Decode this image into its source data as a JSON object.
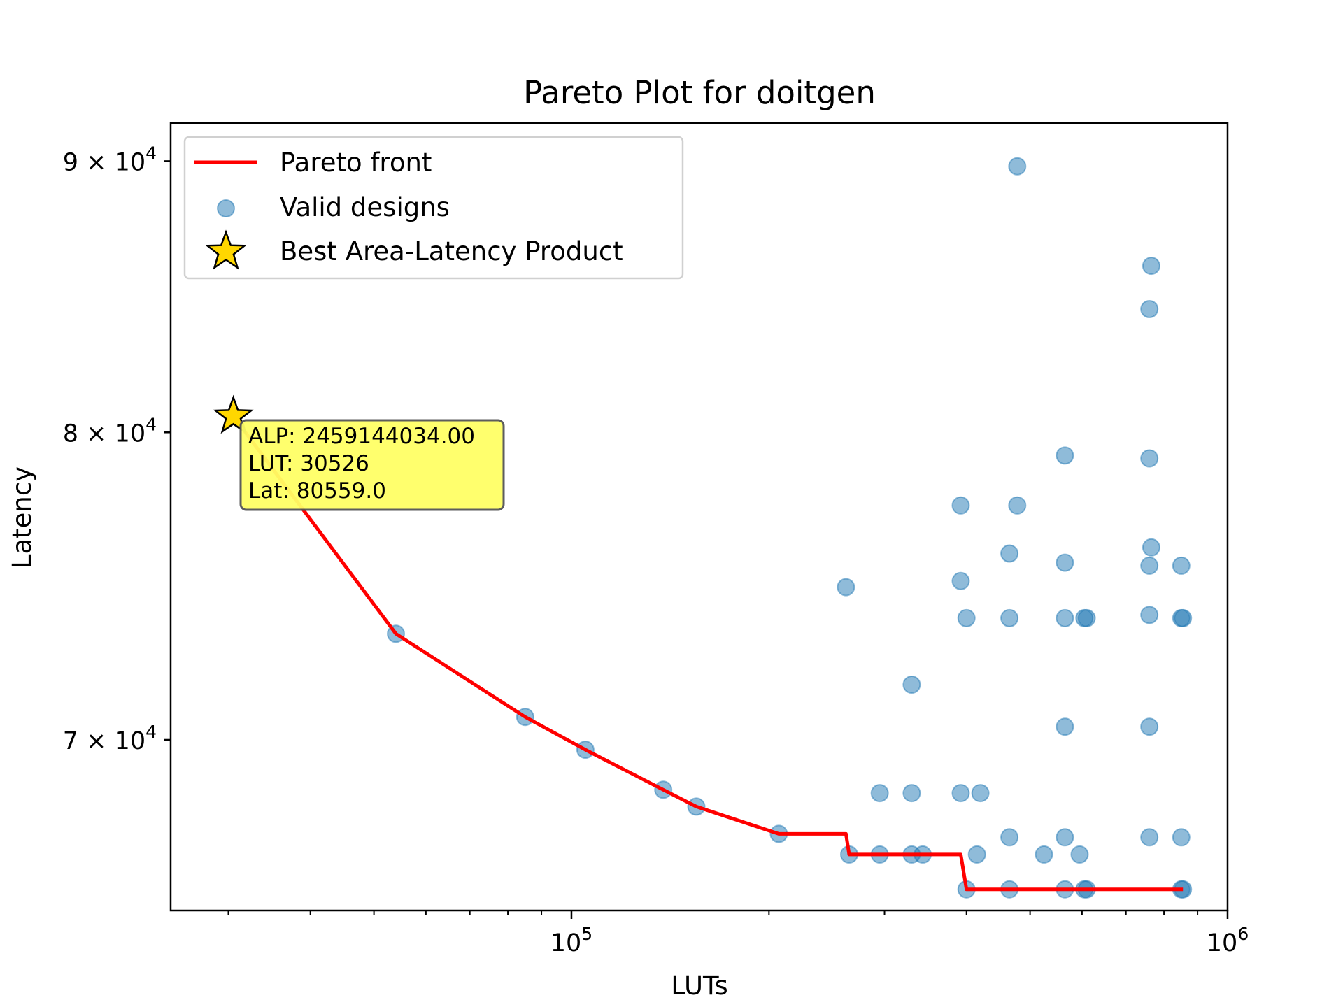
{
  "chart_data": {
    "type": "scatter",
    "title": "Pareto Plot for doitgen",
    "xlabel": "LUTs",
    "ylabel": "Latency",
    "xscale": "log",
    "yscale": "log",
    "xlim": [
      24500,
      1000000
    ],
    "ylim": [
      65000,
      91500
    ],
    "x_ticks": [
      {
        "value": 100000,
        "base": "10",
        "exp": "5"
      },
      {
        "value": 1000000,
        "base": "10",
        "exp": "6"
      }
    ],
    "y_ticks": [
      {
        "value": 70000,
        "mant": "7",
        "base": "10",
        "exp": "4"
      },
      {
        "value": 80000,
        "mant": "8",
        "base": "10",
        "exp": "4"
      },
      {
        "value": 90000,
        "mant": "9",
        "base": "10",
        "exp": "4"
      }
    ],
    "grid": false,
    "legend_position": "top-left",
    "legend": [
      {
        "label": "Pareto front",
        "kind": "line"
      },
      {
        "label": "Valid designs",
        "kind": "marker"
      },
      {
        "label": "Best Area-Latency Product",
        "kind": "star"
      }
    ],
    "colors": {
      "pareto": "#ff0000",
      "points": "#1f77b4",
      "star": "#ffd700",
      "annotation_bg": "#ffff66"
    },
    "valid_designs": [
      [
        54000,
        73300
      ],
      [
        85000,
        70700
      ],
      [
        105000,
        69700
      ],
      [
        138000,
        68500
      ],
      [
        155000,
        68000
      ],
      [
        207000,
        67200
      ],
      [
        262000,
        74800
      ],
      [
        265000,
        66600
      ],
      [
        295000,
        66600
      ],
      [
        295000,
        68400
      ],
      [
        330000,
        71700
      ],
      [
        330000,
        68400
      ],
      [
        330000,
        66600
      ],
      [
        343000,
        66600
      ],
      [
        392000,
        77500
      ],
      [
        392000,
        75000
      ],
      [
        392000,
        68400
      ],
      [
        400000,
        73800
      ],
      [
        400000,
        65600
      ],
      [
        420000,
        68400
      ],
      [
        415000,
        66600
      ],
      [
        465000,
        75900
      ],
      [
        465000,
        73800
      ],
      [
        465000,
        67100
      ],
      [
        465000,
        65600
      ],
      [
        478000,
        77500
      ],
      [
        478000,
        89800
      ],
      [
        525000,
        66600
      ],
      [
        565000,
        79200
      ],
      [
        565000,
        75600
      ],
      [
        565000,
        73800
      ],
      [
        565000,
        70400
      ],
      [
        565000,
        67100
      ],
      [
        565000,
        65600
      ],
      [
        595000,
        66600
      ],
      [
        605000,
        73800
      ],
      [
        610000,
        73800
      ],
      [
        605000,
        65600
      ],
      [
        610000,
        65600
      ],
      [
        760000,
        84400
      ],
      [
        765000,
        86000
      ],
      [
        760000,
        79100
      ],
      [
        765000,
        76100
      ],
      [
        760000,
        75500
      ],
      [
        760000,
        73900
      ],
      [
        760000,
        70400
      ],
      [
        760000,
        67100
      ],
      [
        850000,
        75500
      ],
      [
        850000,
        73800
      ],
      [
        855000,
        73800
      ],
      [
        850000,
        67100
      ],
      [
        850000,
        65600
      ],
      [
        855000,
        65600
      ]
    ],
    "pareto_front": [
      [
        30526,
        80559
      ],
      [
        54000,
        73300
      ],
      [
        85000,
        70700
      ],
      [
        105000,
        69700
      ],
      [
        138000,
        68500
      ],
      [
        155000,
        68000
      ],
      [
        207000,
        67200
      ],
      [
        262000,
        67200
      ],
      [
        265000,
        66600
      ],
      [
        392000,
        66600
      ],
      [
        400000,
        65600
      ],
      [
        855000,
        65600
      ]
    ],
    "best_point": {
      "x": 30526,
      "y": 80559
    },
    "annotation": {
      "alp": "ALP: 2459144034.00",
      "lut": "LUT: 30526",
      "lat": "Lat: 80559.0"
    }
  }
}
